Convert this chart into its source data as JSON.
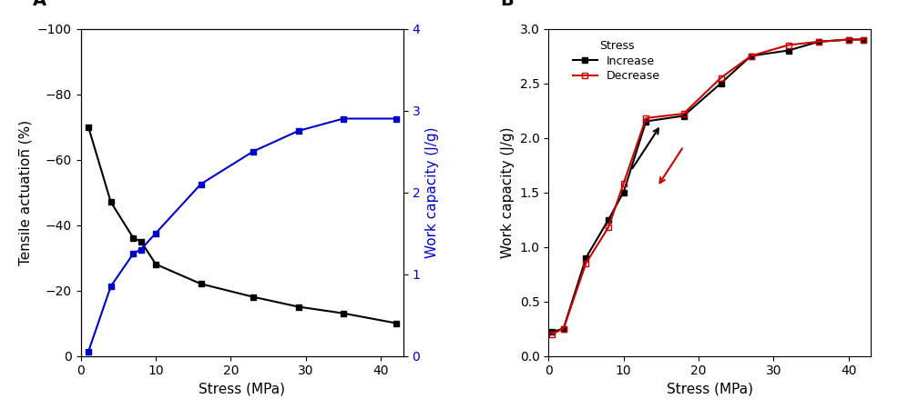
{
  "panel_A": {
    "tensile_x": [
      1,
      4,
      7,
      8,
      10,
      16,
      23,
      29,
      35,
      42
    ],
    "tensile_y": [
      -70,
      -47,
      -36,
      -35,
      -28,
      -22,
      -18,
      -15,
      -13,
      -10
    ],
    "work_x": [
      1,
      4,
      7,
      8,
      10,
      16,
      23,
      29,
      35,
      42
    ],
    "work_y": [
      0.05,
      0.85,
      1.25,
      1.3,
      1.5,
      2.1,
      2.5,
      2.75,
      2.9,
      2.9
    ],
    "tensile_color": "#000000",
    "work_color": "#0000cc",
    "xlabel": "Stress (MPa)",
    "ylabel_left": "Tensile actuation̅ (%)",
    "ylabel_right": "Work capacity (J/g)",
    "ylim_left": [
      -100,
      0
    ],
    "ylim_right": [
      0,
      4
    ],
    "xlim": [
      0,
      43
    ],
    "yticks_left": [
      -100,
      -80,
      -60,
      -40,
      -20,
      0
    ],
    "yticks_right": [
      0,
      1,
      2,
      3,
      4
    ],
    "xticks": [
      0,
      10,
      20,
      30,
      40
    ],
    "label": "A"
  },
  "panel_B": {
    "increase_x": [
      0.5,
      2,
      5,
      8,
      10,
      13,
      18,
      23,
      27,
      32,
      36,
      40,
      42
    ],
    "increase_y": [
      0.22,
      0.25,
      0.9,
      1.25,
      1.5,
      2.15,
      2.2,
      2.5,
      2.75,
      2.8,
      2.88,
      2.9,
      2.9
    ],
    "decrease_x": [
      0.5,
      2,
      5,
      8,
      10,
      13,
      18,
      23,
      27,
      32,
      36,
      40,
      42
    ],
    "decrease_y": [
      0.2,
      0.25,
      0.85,
      1.18,
      1.58,
      2.18,
      2.22,
      2.55,
      2.75,
      2.85,
      2.88,
      2.9,
      2.9
    ],
    "increase_color": "#000000",
    "decrease_color": "#cc0000",
    "xlabel": "Stress (MPa)",
    "ylabel": "Work capacity (J/g)",
    "ylim": [
      0,
      3.0
    ],
    "xlim": [
      0,
      43
    ],
    "yticks": [
      0.0,
      0.5,
      1.0,
      1.5,
      2.0,
      2.5,
      3.0
    ],
    "xticks": [
      0,
      10,
      20,
      30,
      40
    ],
    "label": "B",
    "legend_title": "Stress",
    "legend_increase": "Increase",
    "legend_decrease": "Decrease"
  }
}
